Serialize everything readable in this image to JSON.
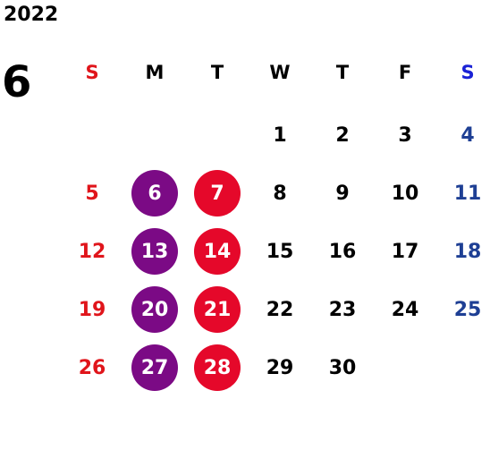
{
  "calendar": {
    "year": "2022",
    "month": "6",
    "weekday_headers": [
      "S",
      "M",
      "T",
      "W",
      "T",
      "F",
      "S"
    ],
    "weeks": [
      [
        "",
        "",
        "",
        "1",
        "2",
        "3",
        "4"
      ],
      [
        "5",
        "6",
        "7",
        "8",
        "9",
        "10",
        "11"
      ],
      [
        "12",
        "13",
        "14",
        "15",
        "16",
        "17",
        "18"
      ],
      [
        "19",
        "20",
        "21",
        "22",
        "23",
        "24",
        "25"
      ],
      [
        "26",
        "27",
        "28",
        "29",
        "30",
        "",
        ""
      ]
    ],
    "highlighted_dates": {
      "purple": [
        "6",
        "13",
        "20",
        "27"
      ],
      "red": [
        "7",
        "14",
        "21",
        "28"
      ]
    }
  },
  "colors": {
    "sunday": "#e0151b",
    "saturday": "#1e3f94",
    "saturday_header": "#1a22d6",
    "weekday": "#000000",
    "highlight_purple": "#7b0a85",
    "highlight_red": "#e5082a"
  }
}
